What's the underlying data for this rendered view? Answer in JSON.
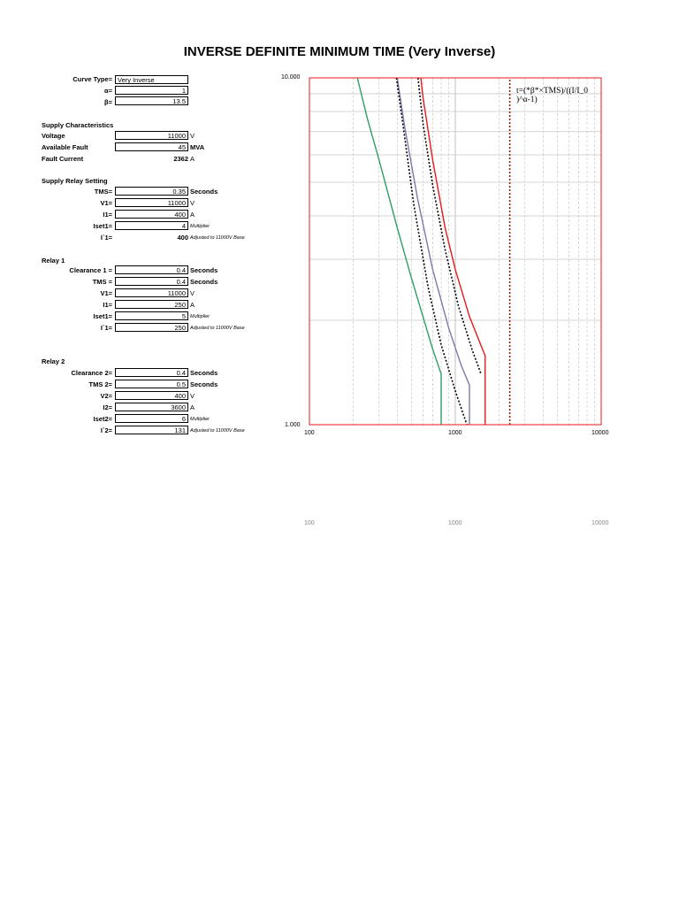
{
  "page": {
    "title": "INVERSE DEFINITE MINIMUM TIME (Very Inverse)"
  },
  "params": {
    "curve_type_label": "Curve Type=",
    "curve_type_value": "Very Inverse",
    "alpha_label": "α=",
    "alpha_value": "1",
    "beta_label": "β=",
    "beta_value": "13.5"
  },
  "supply": {
    "header": "Supply Characteristics",
    "voltage_label": "Voltage",
    "voltage_value": "11000",
    "voltage_unit": "V",
    "fault_label": "Available Fault",
    "fault_value": "45",
    "fault_unit": "MVA",
    "current_label": "Fault Current",
    "current_value": "2362",
    "current_unit": "A"
  },
  "supply_relay": {
    "header": "Supply Relay Setting",
    "tms_label": "TMS=",
    "tms_value": "0.35",
    "tms_unit": "Seconds",
    "v1_label": "V1=",
    "v1_value": "11000",
    "v1_unit": "V",
    "i1_label": "I1=",
    "i1_value": "400",
    "i1_unit": "A",
    "iset_label": "Iset1=",
    "iset_value": "4",
    "iset_note": "Multiplier",
    "iprime_label": "I`1=",
    "iprime_value": "400",
    "iprime_note": "Adjusted to 11000V Base"
  },
  "relay1": {
    "header": "Relay 1",
    "clearance_label": "Clearance 1 =",
    "clearance_value": "0.4",
    "clearance_unit": "Seconds",
    "tms_label": "TMS =",
    "tms_value": "0.4",
    "tms_unit": "Seconds",
    "v1_label": "V1=",
    "v1_value": "11000",
    "v1_unit": "V",
    "i1_label": "I1=",
    "i1_value": "250",
    "i1_unit": "A",
    "iset_label": "Iset1=",
    "iset_value": "5",
    "iset_note": "Multiplier",
    "iprime_label": "I`1=",
    "iprime_value": "250",
    "iprime_note": "Adjusted to 11000V Base"
  },
  "relay2": {
    "header": "Relay 2",
    "clearance_label": "Clearance 2=",
    "clearance_value": "0.4",
    "clearance_unit": "Seconds",
    "tms_label": "TMS 2=",
    "tms_value": "0.5",
    "tms_unit": "Seconds",
    "v2_label": "V2=",
    "v2_value": "400",
    "v2_unit": "V",
    "i2_label": "I2=",
    "i2_value": "3600",
    "i2_unit": "A",
    "iset_label": "Iset2=",
    "iset_value": "6",
    "iset_note": "Multiplier",
    "iprime_label": "I`2=",
    "iprime_value": "131",
    "iprime_note": "Adjusted to 11000V Base"
  },
  "chart_data": {
    "type": "line",
    "x_scale": "log",
    "y_scale": "log",
    "xlim": [
      100,
      10000
    ],
    "ylim": [
      1,
      10
    ],
    "x_tick_labels": [
      "100",
      "1000",
      "10000"
    ],
    "y_tick_labels": [
      "1.000",
      "10.000"
    ],
    "grid": true,
    "formula": "t=(*β*×TMS)/((I/I_0 )^α-1)",
    "series": [
      {
        "color": "#2e9e62",
        "style": "solid",
        "x": [
          213,
          250,
          300,
          400,
          500,
          600,
          700,
          800,
          800
        ],
        "y": [
          10,
          7.6,
          5.8,
          3.7,
          2.65,
          2.05,
          1.65,
          1.4,
          1
        ]
      },
      {
        "color": "#7a7aaa",
        "style": "solid",
        "x": [
          400,
          450,
          550,
          700,
          900,
          1100,
          1250,
          1250
        ],
        "y": [
          10,
          7.2,
          4.5,
          2.8,
          1.9,
          1.48,
          1.3,
          1
        ]
      },
      {
        "color": "#000000",
        "style": "dotted",
        "x": [
          395,
          440,
          520,
          650,
          800,
          1000,
          1200
        ],
        "y": [
          10,
          7.2,
          4.3,
          2.5,
          1.7,
          1.25,
          1
        ]
      },
      {
        "color": "#000000",
        "style": "dotted",
        "x": [
          555,
          600,
          700,
          850,
          1050,
          1300,
          1500
        ],
        "y": [
          10,
          7.4,
          4.9,
          3.2,
          2.2,
          1.65,
          1.4
        ]
      },
      {
        "color": "#e8191c",
        "style": "solid",
        "x": [
          580,
          600,
          700,
          850,
          1000,
          1250,
          1600,
          1600
        ],
        "y": [
          10,
          8.8,
          5.8,
          3.7,
          2.8,
          2.05,
          1.58,
          1
        ]
      },
      {
        "color": "#8b2500",
        "style": "dotted",
        "x": [
          2362,
          2362
        ],
        "y": [
          1,
          10
        ]
      }
    ]
  }
}
